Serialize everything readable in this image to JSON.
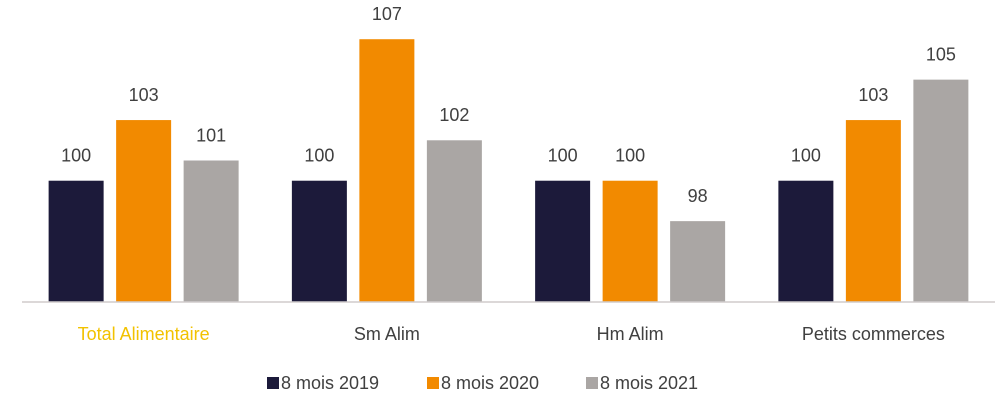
{
  "chart_data": {
    "type": "bar",
    "categories": [
      "Total Alimentaire",
      "Sm Alim",
      "Hm Alim",
      "Petits commerces"
    ],
    "category_colors": [
      "#f2c200",
      "#404040",
      "#404040",
      "#404040"
    ],
    "series": [
      {
        "name": "8 mois 2019",
        "color": "#1c1a3a",
        "values": [
          100,
          100,
          100,
          100
        ]
      },
      {
        "name": "8 mois 2020",
        "color": "#f28a00",
        "values": [
          103,
          107,
          100,
          103
        ]
      },
      {
        "name": "8 mois 2021",
        "color": "#aaa6a4",
        "values": [
          101,
          102,
          98,
          105
        ]
      }
    ],
    "ylim": [
      94,
      108
    ],
    "grid": false,
    "legend": "bottom"
  }
}
